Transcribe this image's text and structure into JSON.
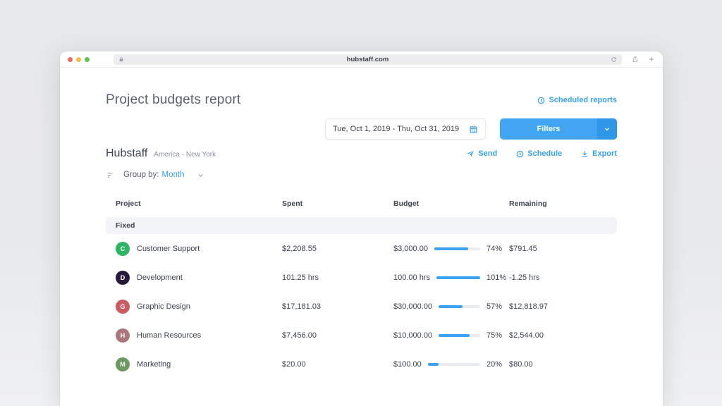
{
  "browser": {
    "url": "hubstaff.com"
  },
  "page": {
    "title": "Project budgets report",
    "scheduled_reports_label": "Scheduled reports",
    "date_range": "Tue, Oct 1, 2019 - Thu, Oct 31, 2019",
    "filters_label": "Filters",
    "org_name": "Hubstaff",
    "org_location": "America - New York",
    "send_label": "Send",
    "schedule_label": "Schedule",
    "export_label": "Export",
    "group_by_label": "Group by:",
    "group_by_value": "Month"
  },
  "icons": {
    "lock": "lock-icon",
    "refresh": "refresh-icon",
    "share": "share-icon",
    "new_tab": "plus-icon",
    "clock": "clock-icon",
    "calendar": "calendar-icon",
    "send": "paper-plane-icon",
    "download": "download-icon",
    "sort": "sort-lines-icon",
    "chevron": "chevron-down-icon"
  },
  "colors": {
    "accent_blue": "#35a1f2",
    "filters_button": "#41a5f2",
    "filters_caret": "#2f97e8",
    "progress_fill": "#3ba1f0",
    "progress_track": "#e9edf2",
    "group_row_bg": "#f3f4f7"
  },
  "table": {
    "columns": [
      "Project",
      "Spent",
      "Budget",
      "Remaining"
    ],
    "group_label": "Fixed",
    "rows": [
      {
        "initial": "C",
        "color": "#2eb563",
        "name": "Customer Support",
        "spent": "$2,208.55",
        "budget": "$3,000.00",
        "percent": 74,
        "percent_label": "74%",
        "remaining": "$791.45"
      },
      {
        "initial": "D",
        "color": "#261a38",
        "name": "Development",
        "spent": "101.25 hrs",
        "budget": "100.00 hrs",
        "percent": 101,
        "percent_label": "101%",
        "remaining": "-1.25 hrs"
      },
      {
        "initial": "G",
        "color": "#cb5a61",
        "name": "Graphic Design",
        "spent": "$17,181.03",
        "budget": "$30,000.00",
        "percent": 57,
        "percent_label": "57%",
        "remaining": "$12,818.97"
      },
      {
        "initial": "H",
        "color": "#a9767d",
        "name": "Human Resources",
        "spent": "$7,456.00",
        "budget": "$10,000.00",
        "percent": 75,
        "percent_label": "75%",
        "remaining": "$2,544.00"
      },
      {
        "initial": "M",
        "color": "#6d9862",
        "name": "Marketing",
        "spent": "$20.00",
        "budget": "$100.00",
        "percent": 20,
        "percent_label": "20%",
        "remaining": "$80.00"
      }
    ]
  }
}
